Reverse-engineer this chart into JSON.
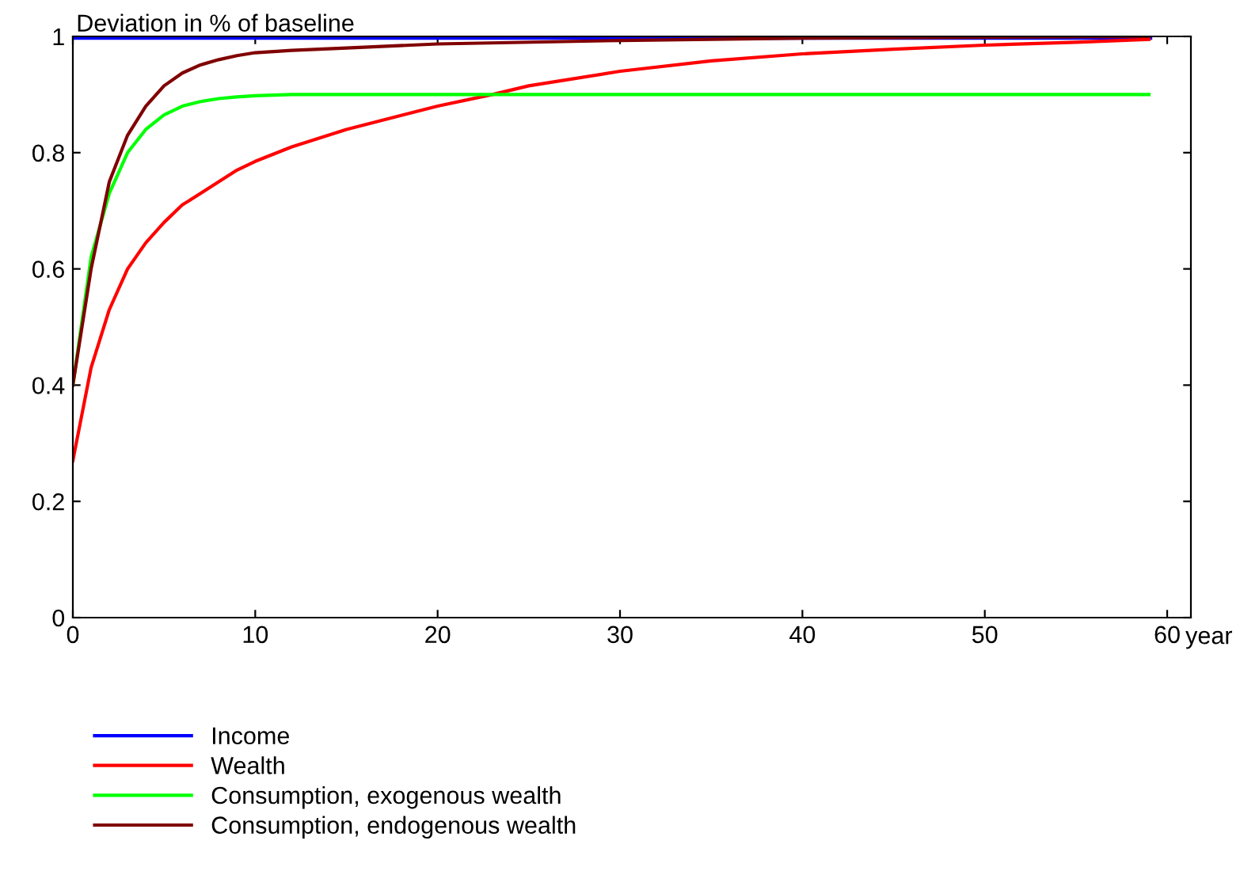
{
  "chart_data": {
    "type": "line",
    "ylabel": "Deviation in % of baseline",
    "xlabel": "year",
    "xlim": [
      0,
      61.3
    ],
    "ylim": [
      0,
      1
    ],
    "xticks": [
      0,
      10,
      20,
      30,
      40,
      50,
      60
    ],
    "yticks": [
      0,
      0.2,
      0.4,
      0.6,
      0.8,
      1
    ],
    "grid": false,
    "legend": "bottom",
    "marker": "none",
    "line_style": "solid",
    "series": [
      {
        "name": "Income",
        "color": "#0000ff",
        "x": [
          0,
          59
        ],
        "values": [
          1,
          1
        ]
      },
      {
        "name": "Wealth",
        "color": "#ff0000",
        "x": [
          0,
          1,
          2,
          3,
          4,
          5,
          6,
          7,
          8,
          9,
          10,
          12,
          15,
          20,
          23,
          25,
          30,
          35,
          40,
          45,
          50,
          55,
          59
        ],
        "values": [
          0.27,
          0.43,
          0.53,
          0.6,
          0.645,
          0.68,
          0.71,
          0.73,
          0.75,
          0.77,
          0.785,
          0.81,
          0.84,
          0.88,
          0.9,
          0.915,
          0.94,
          0.958,
          0.97,
          0.978,
          0.985,
          0.99,
          0.995
        ]
      },
      {
        "name": "Consumption, exogenous wealth",
        "color": "#00ff00",
        "x": [
          0,
          1,
          2,
          3,
          4,
          5,
          6,
          7,
          8,
          9,
          10,
          12,
          20,
          59
        ],
        "values": [
          0.4,
          0.62,
          0.73,
          0.8,
          0.84,
          0.865,
          0.88,
          0.888,
          0.893,
          0.896,
          0.898,
          0.9,
          0.9,
          0.9
        ]
      },
      {
        "name": "Consumption, endogenous wealth",
        "color": "#800000",
        "x": [
          0,
          1,
          2,
          3,
          4,
          5,
          6,
          7,
          8,
          9,
          10,
          12,
          15,
          20,
          30,
          40,
          59
        ],
        "values": [
          0.4,
          0.6,
          0.75,
          0.83,
          0.88,
          0.915,
          0.937,
          0.951,
          0.96,
          0.967,
          0.972,
          0.976,
          0.98,
          0.987,
          0.993,
          0.997,
          1.0
        ]
      }
    ]
  }
}
